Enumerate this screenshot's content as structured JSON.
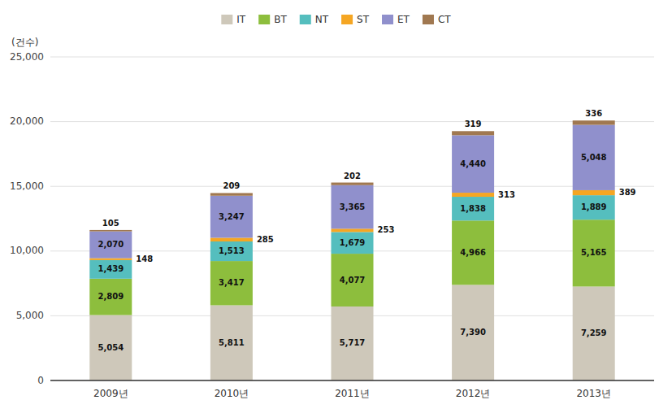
{
  "chart_data": {
    "type": "bar",
    "stacked": true,
    "y_label": "(건수)",
    "categories": [
      "2009년",
      "2010년",
      "2011년",
      "2012년",
      "2013년"
    ],
    "series": [
      {
        "name": "IT",
        "color": "#cec8ba",
        "values": [
          5054,
          5811,
          5717,
          7390,
          7259
        ],
        "value_labels": [
          "5,054",
          "5,811",
          "5,717",
          "7,390",
          "7,259"
        ]
      },
      {
        "name": "BT",
        "color": "#8dbe3d",
        "values": [
          2809,
          3417,
          4077,
          4966,
          5165
        ],
        "value_labels": [
          "2,809",
          "3,417",
          "4,077",
          "4,966",
          "5,165"
        ]
      },
      {
        "name": "NT",
        "color": "#55bebe",
        "values": [
          1439,
          1513,
          1679,
          1838,
          1889
        ],
        "value_labels": [
          "1,439",
          "1,513",
          "1,679",
          "1,838",
          "1,889"
        ]
      },
      {
        "name": "ST",
        "color": "#f5a623",
        "values": [
          148,
          285,
          253,
          313,
          389
        ],
        "value_labels": [
          "148",
          "285",
          "253",
          "313",
          "389"
        ]
      },
      {
        "name": "ET",
        "color": "#9090cc",
        "values": [
          2070,
          3247,
          3365,
          4440,
          5048
        ],
        "value_labels": [
          "2,070",
          "3,247",
          "3,365",
          "4,440",
          "5,048"
        ]
      },
      {
        "name": "CT",
        "color": "#a07850",
        "values": [
          105,
          209,
          202,
          319,
          336
        ],
        "value_labels": [
          "105",
          "209",
          "202",
          "319",
          "336"
        ]
      }
    ],
    "ylim": [
      0,
      25000
    ],
    "yticks": [
      0,
      {
        "value": 5000,
        "label": "5,000"
      },
      {
        "value": 10000,
        "label": "10,000"
      },
      {
        "value": 15000,
        "label": "15,000"
      },
      {
        "value": 20000,
        "label": "20,000"
      },
      {
        "value": 25000,
        "label": "25,000"
      }
    ],
    "grid": true,
    "legend": "top",
    "data_labels": true
  }
}
